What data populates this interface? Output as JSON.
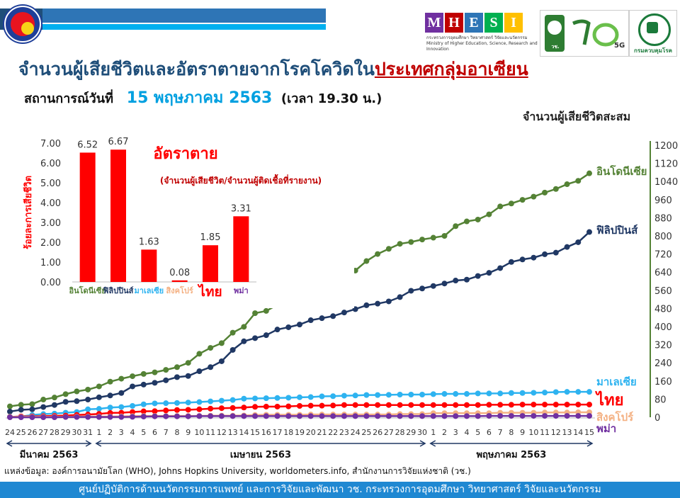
{
  "header": {
    "title_main": "จำนวนผู้เสียชีวิตและอัตราตายจากโรคโควิดใน",
    "title_highlight": "ประเทศกลุ่มอาเซียน",
    "subtitle_prefix": "สถานการณ์วันที่",
    "subtitle_date": "15 พฤษภาคม 2563",
    "subtitle_time": "(เวลา 19.30 น.)",
    "mhesi_letters": [
      "M",
      "H",
      "E",
      "S",
      "I"
    ],
    "mhesi_colors": [
      "#7030a0",
      "#c00000",
      "#2e75b6",
      "#00b050",
      "#ffc000"
    ],
    "mhesi_subtitle": "กระทรวงการอุดมศึกษา วิทยาศาสตร์ วิจัยและนวัตกรรม Ministry of Higher Education, Science, Research and Innovation",
    "nrct_label": "วช. NRCT",
    "moph_label": "กรมควบคุมโรค",
    "logo_5g": "5G"
  },
  "cumulative_axis_label": "จำนวนผู้เสียชีวิตสะสม",
  "source_text": "แหล่งข้อมูล: องค์การอนามัยโลก (WHO), Johns Hopkins University, worldometers.info, สำนักงานการวิจัยแห่งชาติ (วช.)",
  "footer_text": "ศูนย์ปฏิบัติการด้านนวัตกรรมการแพทย์ และการวิจัยและพัฒนา วช.   กระทรวงการอุดมศึกษา วิทยาศาสตร์ วิจัยและนวัตกรรม",
  "chart_data": [
    {
      "type": "line",
      "x_day_labels": [
        "24",
        "25",
        "26",
        "27",
        "28",
        "29",
        "30",
        "31",
        "1",
        "2",
        "3",
        "4",
        "5",
        "6",
        "7",
        "8",
        "9",
        "10",
        "11",
        "12",
        "13",
        "14",
        "15",
        "16",
        "17",
        "18",
        "19",
        "20",
        "21",
        "22",
        "23",
        "24",
        "25",
        "26",
        "27",
        "28",
        "29",
        "30",
        "1",
        "2",
        "3",
        "4",
        "5",
        "6",
        "7",
        "8",
        "9",
        "10",
        "11",
        "12",
        "13",
        "14",
        "15"
      ],
      "month_labels": [
        "มีนาคม 2563",
        "เมษายน 2563",
        "พฤษภาคม 2563"
      ],
      "ylabel": "จำนวนผู้เสียชีวิตสะสม",
      "yticks": [
        0,
        80,
        160,
        240,
        320,
        400,
        480,
        560,
        640,
        720,
        800,
        880,
        960,
        1040,
        1120,
        1200
      ],
      "ylim": [
        0,
        1200
      ],
      "series": [
        {
          "name": "อินโดนีเซีย",
          "color": "#548235",
          "values": [
            48,
            55,
            58,
            78,
            87,
            102,
            114,
            122,
            136,
            157,
            170,
            181,
            191,
            198,
            209,
            221,
            240,
            280,
            306,
            327,
            373,
            399,
            459,
            469,
            496,
            520,
            535,
            582,
            590,
            616,
            635,
            647,
            689,
            720,
            743,
            765,
            773,
            784,
            792,
            800,
            843,
            864,
            872,
            895,
            930,
            943,
            959,
            973,
            991,
            1007,
            1028,
            1043,
            1076
          ]
        },
        {
          "name": "ฟิลิปปินส์",
          "color": "#203864",
          "values": [
            25,
            33,
            35,
            45,
            54,
            68,
            71,
            78,
            88,
            96,
            107,
            136,
            144,
            152,
            163,
            177,
            182,
            203,
            221,
            247,
            297,
            335,
            349,
            362,
            387,
            397,
            409,
            428,
            437,
            446,
            462,
            477,
            494,
            501,
            511,
            530,
            558,
            568,
            579,
            590,
            603,
            607,
            623,
            637,
            658,
            685,
            696,
            704,
            719,
            726,
            751,
            772,
            817
          ]
        },
        {
          "name": "มาเลเซีย",
          "color": "#2eb3f0",
          "values": [
            2,
            3,
            10,
            14,
            16,
            20,
            23,
            35,
            37,
            43,
            45,
            50,
            57,
            61,
            62,
            63,
            65,
            67,
            70,
            73,
            76,
            82,
            83,
            84,
            85,
            86,
            88,
            89,
            92,
            93,
            95,
            96,
            98,
            98,
            99,
            100,
            100,
            100,
            102,
            103,
            103,
            103,
            105,
            105,
            105,
            107,
            107,
            108,
            109,
            111,
            112,
            112,
            112
          ]
        },
        {
          "name": "ไทย",
          "color": "#ff0000",
          "values": [
            1,
            4,
            4,
            5,
            6,
            7,
            10,
            12,
            15,
            19,
            20,
            23,
            26,
            27,
            30,
            32,
            33,
            35,
            38,
            40,
            41,
            43,
            46,
            47,
            47,
            48,
            50,
            51,
            51,
            52,
            54,
            54,
            54,
            54,
            54,
            54,
            54,
            54,
            54,
            54,
            54,
            54,
            54,
            55,
            55,
            55,
            56,
            56,
            56,
            56,
            56,
            56,
            56
          ]
        },
        {
          "name": "สิงคโปร์",
          "color": "#f4b183",
          "values": [
            2,
            2,
            2,
            2,
            2,
            2,
            3,
            3,
            3,
            3,
            4,
            5,
            6,
            6,
            6,
            6,
            6,
            6,
            7,
            7,
            7,
            8,
            10,
            11,
            11,
            11,
            11,
            12,
            12,
            12,
            12,
            12,
            12,
            12,
            12,
            14,
            14,
            14,
            18,
            18,
            18,
            18,
            18,
            18,
            20,
            20,
            20,
            20,
            21,
            21,
            21,
            22,
            22
          ]
        },
        {
          "name": "พม่า",
          "color": "#7030a0",
          "values": [
            0,
            0,
            0,
            0,
            0,
            1,
            1,
            1,
            1,
            1,
            1,
            2,
            3,
            4,
            4,
            4,
            4,
            5,
            5,
            5,
            5,
            5,
            5,
            5,
            5,
            5,
            5,
            5,
            5,
            5,
            5,
            5,
            5,
            5,
            5,
            5,
            5,
            5,
            5,
            5,
            5,
            5,
            5,
            6,
            6,
            6,
            6,
            6,
            6,
            6,
            6,
            6,
            6
          ]
        }
      ]
    },
    {
      "type": "bar",
      "title": "อัตราตาย",
      "subtitle": "(จำนวนผู้เสียชีวิต/จำนวนผู้ติดเชื้อที่รายงาน)",
      "ylabel": "ร้อยละการเสียชีวิต",
      "categories": [
        "อินโดนีเซีย",
        "ฟิลิปปินส์",
        "มาเลเซีย",
        "สิงคโปร์",
        "ไทย",
        "พม่า"
      ],
      "category_colors": [
        "#548235",
        "#203864",
        "#2eb3f0",
        "#f4b183",
        "#ff0000",
        "#7030a0"
      ],
      "values": [
        6.52,
        6.67,
        1.63,
        0.08,
        1.85,
        3.31
      ],
      "value_labels": [
        "6.52",
        "6.67",
        "1.63",
        "0.08",
        "1.85",
        "3.31"
      ],
      "bar_color": "#ff0000",
      "yticks": [
        "0.00",
        "1.00",
        "2.00",
        "3.00",
        "4.00",
        "5.00",
        "6.00",
        "7.00"
      ],
      "ylim": [
        0,
        7
      ]
    }
  ]
}
